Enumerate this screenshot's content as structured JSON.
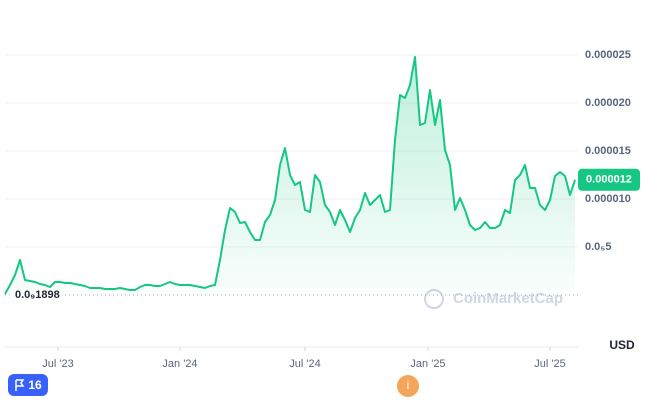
{
  "chart_data": {
    "type": "line",
    "series": [
      {
        "name": "Price",
        "color": "#16c784",
        "values": [
          1e-07,
          1.04e-06,
          2.08e-06,
          3.65e-06,
          1.56e-06,
          1.46e-06,
          1.35e-06,
          1.15e-06,
          1.04e-06,
          8.3e-07,
          1.35e-06,
          1.35e-06,
          1.25e-06,
          1.25e-06,
          1.15e-06,
          1.04e-06,
          9.4e-07,
          7.3e-07,
          7.3e-07,
          7.3e-07,
          6.3e-07,
          6.3e-07,
          6.3e-07,
          7.3e-07,
          6.3e-07,
          5.2e-07,
          5.2e-07,
          8.3e-07,
          1.04e-06,
          1.04e-06,
          9.4e-07,
          9.4e-07,
          1.15e-06,
          1.35e-06,
          1.15e-06,
          1.04e-06,
          1.04e-06,
          1.04e-06,
          9.4e-07,
          8.3e-07,
          7.3e-07,
          9.4e-07,
          1.04e-06,
          3.65e-06,
          6.77e-06,
          9.06e-06,
          8.65e-06,
          7.5e-06,
          7.6e-06,
          6.56e-06,
          5.73e-06,
          5.73e-06,
          7.6e-06,
          8.33e-06,
          9.9e-06,
          1.354e-05,
          1.531e-05,
          1.25e-05,
          1.146e-05,
          1.177e-05,
          8.85e-06,
          8.65e-06,
          1.25e-05,
          1.177e-05,
          9.38e-06,
          8.65e-06,
          7.29e-06,
          8.85e-06,
          7.81e-06,
          6.56e-06,
          8.02e-06,
          8.85e-06,
          1.063e-05,
          9.38e-06,
          9.9e-06,
          1.042e-05,
          8.65e-06,
          8.85e-06,
          1.615e-05,
          2.083e-05,
          2.052e-05,
          2.188e-05,
          2.479e-05,
          1.771e-05,
          1.792e-05,
          2.135e-05,
          1.771e-05,
          2.031e-05,
          1.51e-05,
          1.354e-05,
          8.85e-06,
          1.01e-05,
          8.85e-06,
          7.29e-06,
          6.77e-06,
          6.98e-06,
          7.6e-06,
          6.98e-06,
          6.98e-06,
          7.29e-06,
          8.85e-06,
          8.54e-06,
          1.198e-05,
          1.25e-05,
          1.354e-05,
          1.115e-05,
          1.115e-05,
          9.38e-06,
          8.85e-06,
          9.9e-06,
          1.24e-05,
          1.281e-05,
          1.24e-05,
          1.042e-05,
          1.2e-05
        ]
      }
    ],
    "xlim": [
      0,
      114
    ],
    "xticks": [
      {
        "value": 10.6,
        "label": "Jul '23"
      },
      {
        "value": 35,
        "label": "Jan '24"
      },
      {
        "value": 60,
        "label": "Jul '24"
      },
      {
        "value": 84.6,
        "label": "Jan '25"
      },
      {
        "value": 109,
        "label": "Jul '25"
      }
    ],
    "ylim": [
      0,
      3e-05
    ],
    "yticks": [
      {
        "value": 5e-06,
        "label": "0.0₅5"
      },
      {
        "value": 1e-05,
        "label": "0.000010"
      },
      1.5e-05,
      {
        "value": 2e-05,
        "label": "0.000020"
      },
      2.5e-05
    ],
    "grid": true,
    "min_marker": {
      "value": 1.898e-10,
      "label": "0.0₉1898"
    },
    "currency": "USD",
    "watermark": "CoinMarketCap",
    "annotations": {
      "flag": "16",
      "info": "i"
    }
  }
}
